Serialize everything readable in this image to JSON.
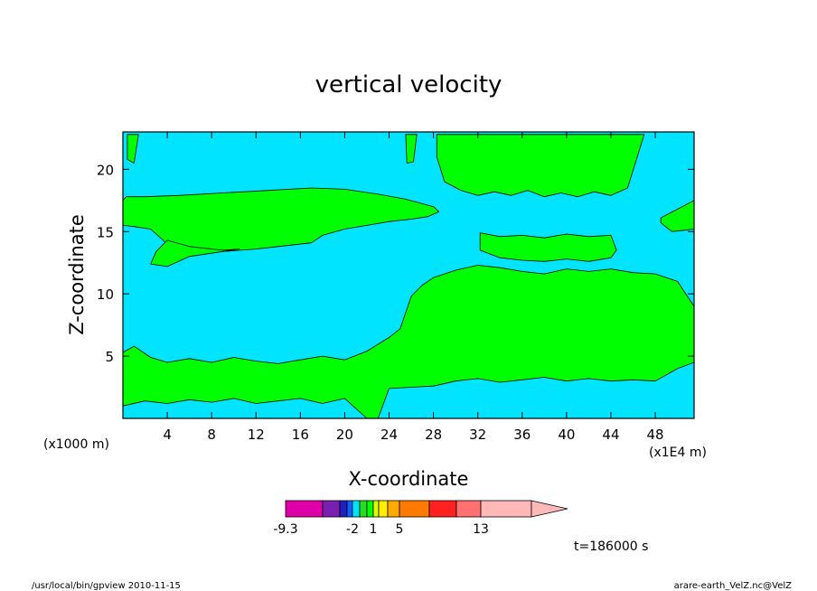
{
  "chart_data": {
    "type": "heatmap",
    "title": "vertical velocity",
    "xlabel": "X-coordinate",
    "ylabel": "Z-coordinate",
    "x_unit_label": "(x1E4 m)",
    "y_unit_label": "(x1000 m)",
    "xlim": [
      0,
      51.5
    ],
    "ylim": [
      0,
      23
    ],
    "x_ticks": [
      4,
      8,
      12,
      16,
      20,
      24,
      28,
      32,
      36,
      40,
      44,
      48
    ],
    "y_ticks": [
      5,
      10,
      15,
      20
    ],
    "grid": false,
    "colorbar": {
      "levels": [
        -9.3,
        -7,
        -5,
        -3,
        -2,
        -1,
        0,
        1,
        2,
        3,
        5,
        7,
        9,
        13,
        17
      ],
      "colors": [
        "#e000a8",
        "#7a20b0",
        "#2020c0",
        "#1060ff",
        "#00e4ff",
        "#20e020",
        "#00ff00",
        "#d8ff00",
        "#ffee00",
        "#ffaa00",
        "#ff7a00",
        "#ff2020",
        "#ff7070",
        "#ffb8b8",
        "#ffb8b8"
      ],
      "tick_labels": [
        "-9.3",
        "-2",
        "1",
        "5",
        "13"
      ],
      "tick_values": [
        -9.3,
        -2,
        1,
        5,
        13
      ],
      "extend": "max"
    },
    "field_colors": {
      "negative": "#00e4ff",
      "positive": "#00ff00"
    },
    "regions_positive": [
      {
        "name": "upper-left-band",
        "x": [
          0,
          0.3,
          2,
          5,
          9,
          13,
          17,
          20,
          23,
          25.5,
          28,
          28.5,
          27.5,
          26,
          24,
          22,
          20,
          18,
          17,
          14,
          12,
          9,
          6,
          4,
          2.5,
          1,
          0
        ],
        "z": [
          17.5,
          17.8,
          17.8,
          17.9,
          18.1,
          18.3,
          18.5,
          18.4,
          18,
          17.6,
          17,
          16.6,
          16.2,
          16,
          15.8,
          15.5,
          15.2,
          14.7,
          14.1,
          13.8,
          13.6,
          13.4,
          13.3,
          14,
          15.2,
          15.4,
          15.5
        ]
      },
      {
        "name": "left-bulge",
        "x": [
          2.5,
          4,
          6,
          9,
          10.5,
          9,
          6,
          4,
          3,
          2.5
        ],
        "z": [
          12.4,
          12.2,
          13,
          13.4,
          13.6,
          13.5,
          13.8,
          14.3,
          13.4,
          12.4
        ]
      },
      {
        "name": "lower-band",
        "x": [
          0,
          1,
          2.5,
          4,
          6,
          8,
          10,
          12,
          14,
          16,
          18,
          20,
          22,
          24,
          25,
          26,
          27,
          28,
          30,
          32,
          34,
          36,
          38,
          40,
          42,
          44,
          46,
          48,
          50,
          51.5,
          51.5,
          50,
          48,
          46,
          44,
          42,
          40,
          38,
          36,
          34,
          32,
          30,
          28,
          26,
          24,
          23,
          22,
          20,
          18,
          16,
          14,
          12,
          10,
          8,
          6,
          4,
          2,
          0
        ],
        "z": [
          5.3,
          5.8,
          4.9,
          4.5,
          4.8,
          4.5,
          4.9,
          4.6,
          4.4,
          4.7,
          5.0,
          4.7,
          5.4,
          6.5,
          7.2,
          9.8,
          10.7,
          11.3,
          11.9,
          12.3,
          12.1,
          11.8,
          11.6,
          12.0,
          11.8,
          12.0,
          11.7,
          11.6,
          11.0,
          9.0,
          4.5,
          4.0,
          3.0,
          3.1,
          3.0,
          3.2,
          3.0,
          3.3,
          3.1,
          2.9,
          3.2,
          3.0,
          2.6,
          2.5,
          2.4,
          0,
          0,
          1.6,
          1.2,
          1.6,
          1.4,
          1.2,
          1.6,
          1.3,
          1.5,
          1.2,
          1.4,
          1.0
        ]
      },
      {
        "name": "mid-right-band",
        "x": [
          32.2,
          34,
          36,
          38,
          40,
          42,
          44,
          44.5,
          44,
          42,
          40,
          38,
          36,
          34,
          32.2
        ],
        "z": [
          14.9,
          14.6,
          14.7,
          14.5,
          14.8,
          14.6,
          14.7,
          13.5,
          12.9,
          12.6,
          12.8,
          12.6,
          12.7,
          12.9,
          13.5
        ]
      },
      {
        "name": "upper-right-a",
        "x": [
          28.3,
          29,
          30,
          31.5,
          33,
          34.5,
          36,
          37.5,
          39,
          40.5,
          42,
          43.5,
          45,
          46.5,
          47,
          45.5,
          44,
          42.5,
          41,
          39.5,
          38,
          36.5,
          35,
          33.5,
          32,
          30.5,
          29,
          28.3
        ],
        "z": [
          22.8,
          22.8,
          22.8,
          22.8,
          22.8,
          22.8,
          22.8,
          22.8,
          22.8,
          22.8,
          22.8,
          22.8,
          22.8,
          22.8,
          22.8,
          18.5,
          17.9,
          18.2,
          17.8,
          18.1,
          17.8,
          18.3,
          17.9,
          18.2,
          17.9,
          18.3,
          19,
          21
        ]
      },
      {
        "name": "upper-left-strip",
        "x": [
          0.4,
          1.4,
          1.0,
          0.4
        ],
        "z": [
          22.8,
          22.8,
          20.5,
          20.8
        ]
      },
      {
        "name": "upper-mid-blob",
        "x": [
          25.5,
          26.5,
          26.2,
          25.6
        ],
        "z": [
          22.8,
          22.8,
          20.6,
          20.5
        ]
      },
      {
        "name": "right-edge-upper",
        "x": [
          48.5,
          51.5,
          51.5,
          49.5,
          48.5
        ],
        "z": [
          16.1,
          17.5,
          15.2,
          15.0,
          15.7
        ]
      }
    ]
  },
  "info": {
    "time_label": "t=186000 s",
    "footer_left": "/usr/local/bin/gpview   2010-11-15",
    "footer_right": "arare-earth_VelZ.nc@VelZ"
  }
}
